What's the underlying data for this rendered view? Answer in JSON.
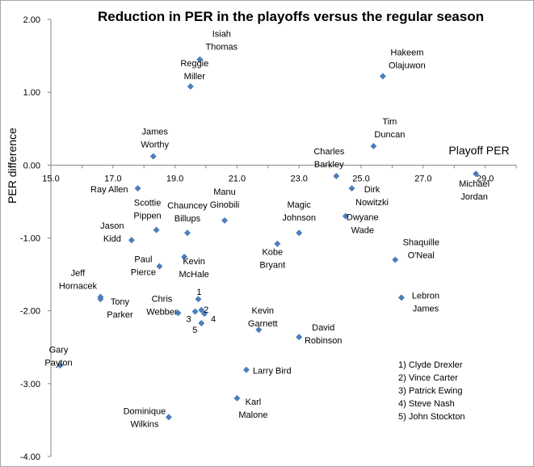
{
  "chart_data": {
    "type": "scatter",
    "title": "Reduction in PER in the playoffs versus the regular season",
    "xlabel": "Playoff PER",
    "ylabel": "PER difference",
    "xlim": [
      15.0,
      30.0
    ],
    "ylim": [
      -4.0,
      2.0
    ],
    "x_ticks": [
      "15.0",
      "17.0",
      "19.0",
      "21.0",
      "23.0",
      "25.0",
      "27.0",
      "29.0"
    ],
    "y_ticks": [
      "2.00",
      "1.00",
      "0.00",
      "-1.00",
      "-2.00",
      "-3.00",
      "-4.00"
    ],
    "grid": false,
    "legend_position": "bottom-right",
    "marker_color": "#4a7ebb",
    "points": [
      {
        "x": 19.8,
        "y": 1.45,
        "label": [
          "Isiah",
          "Thomas"
        ]
      },
      {
        "x": 19.5,
        "y": 1.08,
        "label": [
          "Reggie",
          "Miller"
        ]
      },
      {
        "x": 25.7,
        "y": 1.22,
        "label": [
          "Hakeem",
          "Olajuwon"
        ]
      },
      {
        "x": 18.3,
        "y": 0.12,
        "label": [
          "James",
          "Worthy"
        ]
      },
      {
        "x": 25.4,
        "y": 0.26,
        "label": [
          "Tim",
          "Duncan"
        ]
      },
      {
        "x": 24.2,
        "y": -0.15,
        "label": [
          "Charles",
          "Barkley"
        ]
      },
      {
        "x": 28.7,
        "y": -0.12,
        "label": [
          "Michael",
          "Jordan"
        ]
      },
      {
        "x": 17.8,
        "y": -0.32,
        "label": [
          "Ray Allen"
        ]
      },
      {
        "x": 24.7,
        "y": -0.32,
        "label": [
          "Dirk",
          "Nowitzki"
        ]
      },
      {
        "x": 20.6,
        "y": -0.76,
        "label": [
          "Manu",
          "Ginobili"
        ]
      },
      {
        "x": 18.4,
        "y": -0.89,
        "label": [
          "Scottie",
          "Pippen"
        ]
      },
      {
        "x": 19.4,
        "y": -0.93,
        "label": [
          "Chauncey",
          "Billups"
        ]
      },
      {
        "x": 23.0,
        "y": -0.93,
        "label": [
          "Magic",
          "Johnson"
        ]
      },
      {
        "x": 24.5,
        "y": -0.7,
        "label": [
          "Dwyane",
          "Wade"
        ]
      },
      {
        "x": 17.6,
        "y": -1.03,
        "label": [
          "Jason",
          "Kidd"
        ]
      },
      {
        "x": 22.3,
        "y": -1.08,
        "label": [
          "Kobe",
          "Bryant"
        ]
      },
      {
        "x": 26.1,
        "y": -1.3,
        "label": [
          "Shaquille",
          "O'Neal"
        ]
      },
      {
        "x": 19.3,
        "y": -1.26,
        "label": [
          "Kevin",
          "McHale"
        ]
      },
      {
        "x": 18.5,
        "y": -1.39,
        "label": [
          "Paul",
          "Pierce"
        ]
      },
      {
        "x": 16.6,
        "y": -1.81,
        "label": [
          "Jeff",
          "Hornacek"
        ]
      },
      {
        "x": 16.6,
        "y": -1.84,
        "label": [
          "Tony",
          "Parker"
        ]
      },
      {
        "x": 19.1,
        "y": -2.03,
        "label": [
          "Chris",
          "Webber"
        ]
      },
      {
        "x": 26.3,
        "y": -1.82,
        "label": [
          "Lebron",
          "James"
        ]
      },
      {
        "x": 19.75,
        "y": -1.84,
        "label": [
          "1"
        ]
      },
      {
        "x": 19.85,
        "y": -1.99,
        "label": [
          "2"
        ]
      },
      {
        "x": 19.65,
        "y": -2.01,
        "label": [
          "3"
        ]
      },
      {
        "x": 19.95,
        "y": -2.04,
        "label": [
          "4"
        ]
      },
      {
        "x": 19.85,
        "y": -2.17,
        "label": [
          "5"
        ]
      },
      {
        "x": 21.7,
        "y": -2.26,
        "label": [
          "Kevin",
          "Garnett"
        ]
      },
      {
        "x": 23.0,
        "y": -2.36,
        "label": [
          "David",
          "Robinson"
        ]
      },
      {
        "x": 21.3,
        "y": -2.81,
        "label": [
          "Larry Bird"
        ]
      },
      {
        "x": 15.3,
        "y": -2.75,
        "label": [
          "Gary",
          "Payton"
        ]
      },
      {
        "x": 21.0,
        "y": -3.2,
        "label": [
          "Karl",
          "Malone"
        ]
      },
      {
        "x": 18.8,
        "y": -3.46,
        "label": [
          "Dominique",
          "Wilkins"
        ]
      }
    ],
    "legend": [
      "1) Clyde Drexler",
      "2) Vince Carter",
      "3) Patrick Ewing",
      "4) Steve Nash",
      "5) John Stockton"
    ]
  }
}
